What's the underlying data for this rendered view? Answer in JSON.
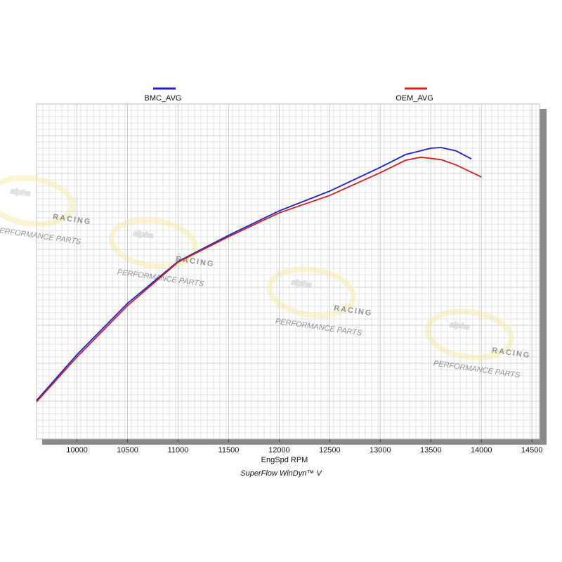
{
  "chart_data": {
    "type": "line",
    "subtitle": "SuperFlow WinDyn™ V",
    "x_label": "EngSpd RPM",
    "xlim": [
      9600,
      14575
    ],
    "xticks": [
      10000,
      10500,
      11000,
      11500,
      12000,
      12500,
      13000,
      13500,
      14000,
      14500
    ],
    "ylim": [
      0,
      100
    ],
    "grid": true,
    "watermark": {
      "brand": "alpha",
      "sub": "RACING",
      "tag": "PERFORMANCE PARTS"
    },
    "series": [
      {
        "name": "BMC_AVG",
        "color": "#1f1fc8",
        "x": [
          9600,
          10000,
          10500,
          11000,
          11500,
          12000,
          12500,
          13000,
          13250,
          13500,
          13600,
          13750,
          13900
        ],
        "values": [
          11.5,
          25.2,
          40.5,
          53.0,
          60.8,
          68.1,
          74.0,
          81.1,
          84.9,
          86.8,
          87.0,
          86.0,
          83.6
        ]
      },
      {
        "name": "OEM_AVG",
        "color": "#d02020",
        "x": [
          9600,
          10000,
          10500,
          11000,
          11500,
          12000,
          12500,
          13000,
          13250,
          13400,
          13600,
          13750,
          14000
        ],
        "values": [
          11.1,
          24.5,
          39.8,
          52.8,
          60.4,
          67.5,
          72.7,
          79.5,
          83.2,
          84.1,
          83.4,
          81.8,
          78.2
        ]
      }
    ]
  }
}
